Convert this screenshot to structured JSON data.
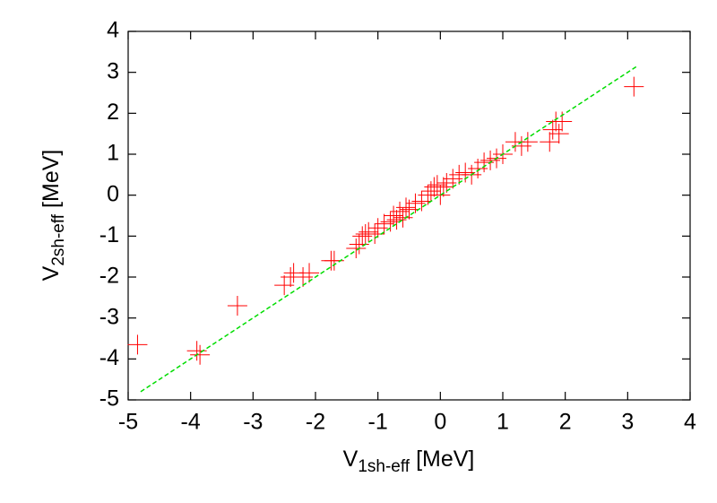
{
  "chart_data": {
    "type": "scatter",
    "x_label": [
      "V",
      "1sh-eff",
      "[MeV]"
    ],
    "y_label": [
      "V",
      "2sh-eff",
      "[MeV]"
    ],
    "xlim": [
      -5,
      4
    ],
    "ylim": [
      -5,
      4
    ],
    "xticks": [
      -5,
      -4,
      -3,
      -2,
      -1,
      0,
      1,
      2,
      3,
      4
    ],
    "yticks": [
      -5,
      -4,
      -3,
      -2,
      -1,
      0,
      1,
      2,
      3,
      4
    ],
    "marker": "plus",
    "series": [
      {
        "color": "#ff0000",
        "x": [
          -4.85,
          -3.9,
          -3.85,
          -3.25,
          -2.5,
          -2.4,
          -2.35,
          -2.2,
          -2.1,
          -1.75,
          -1.7,
          -1.35,
          -1.3,
          -1.25,
          -1.2,
          -1.15,
          -1.05,
          -1.0,
          -0.9,
          -0.8,
          -0.75,
          -0.7,
          -0.65,
          -0.6,
          -0.55,
          -0.5,
          -0.4,
          -0.3,
          -0.2,
          -0.15,
          -0.1,
          -0.05,
          0.0,
          0.05,
          0.1,
          0.2,
          0.3,
          0.4,
          0.5,
          0.6,
          0.7,
          0.8,
          0.9,
          1.0,
          1.2,
          1.3,
          1.4,
          1.75,
          1.8,
          1.85,
          1.9,
          1.95,
          3.1
        ],
        "values": [
          -3.65,
          -3.8,
          -3.9,
          -2.7,
          -2.2,
          -2.0,
          -1.9,
          -2.0,
          -1.9,
          -1.6,
          -1.6,
          -1.3,
          -1.2,
          -1.0,
          -0.95,
          -0.9,
          -0.95,
          -0.8,
          -0.7,
          -0.65,
          -0.5,
          -0.6,
          -0.4,
          -0.55,
          -0.3,
          -0.35,
          -0.2,
          -0.15,
          0.0,
          0.1,
          0.2,
          0.25,
          0.0,
          0.2,
          0.3,
          0.4,
          0.5,
          0.55,
          0.5,
          0.65,
          0.8,
          0.85,
          0.9,
          1.0,
          1.3,
          1.2,
          1.3,
          1.3,
          1.6,
          1.8,
          1.5,
          1.8,
          2.65
        ]
      },
      {
        "color": "#00dd00",
        "style": "dashed",
        "x": [
          -4.8,
          3.15
        ],
        "values": [
          -4.8,
          3.15
        ]
      }
    ]
  }
}
